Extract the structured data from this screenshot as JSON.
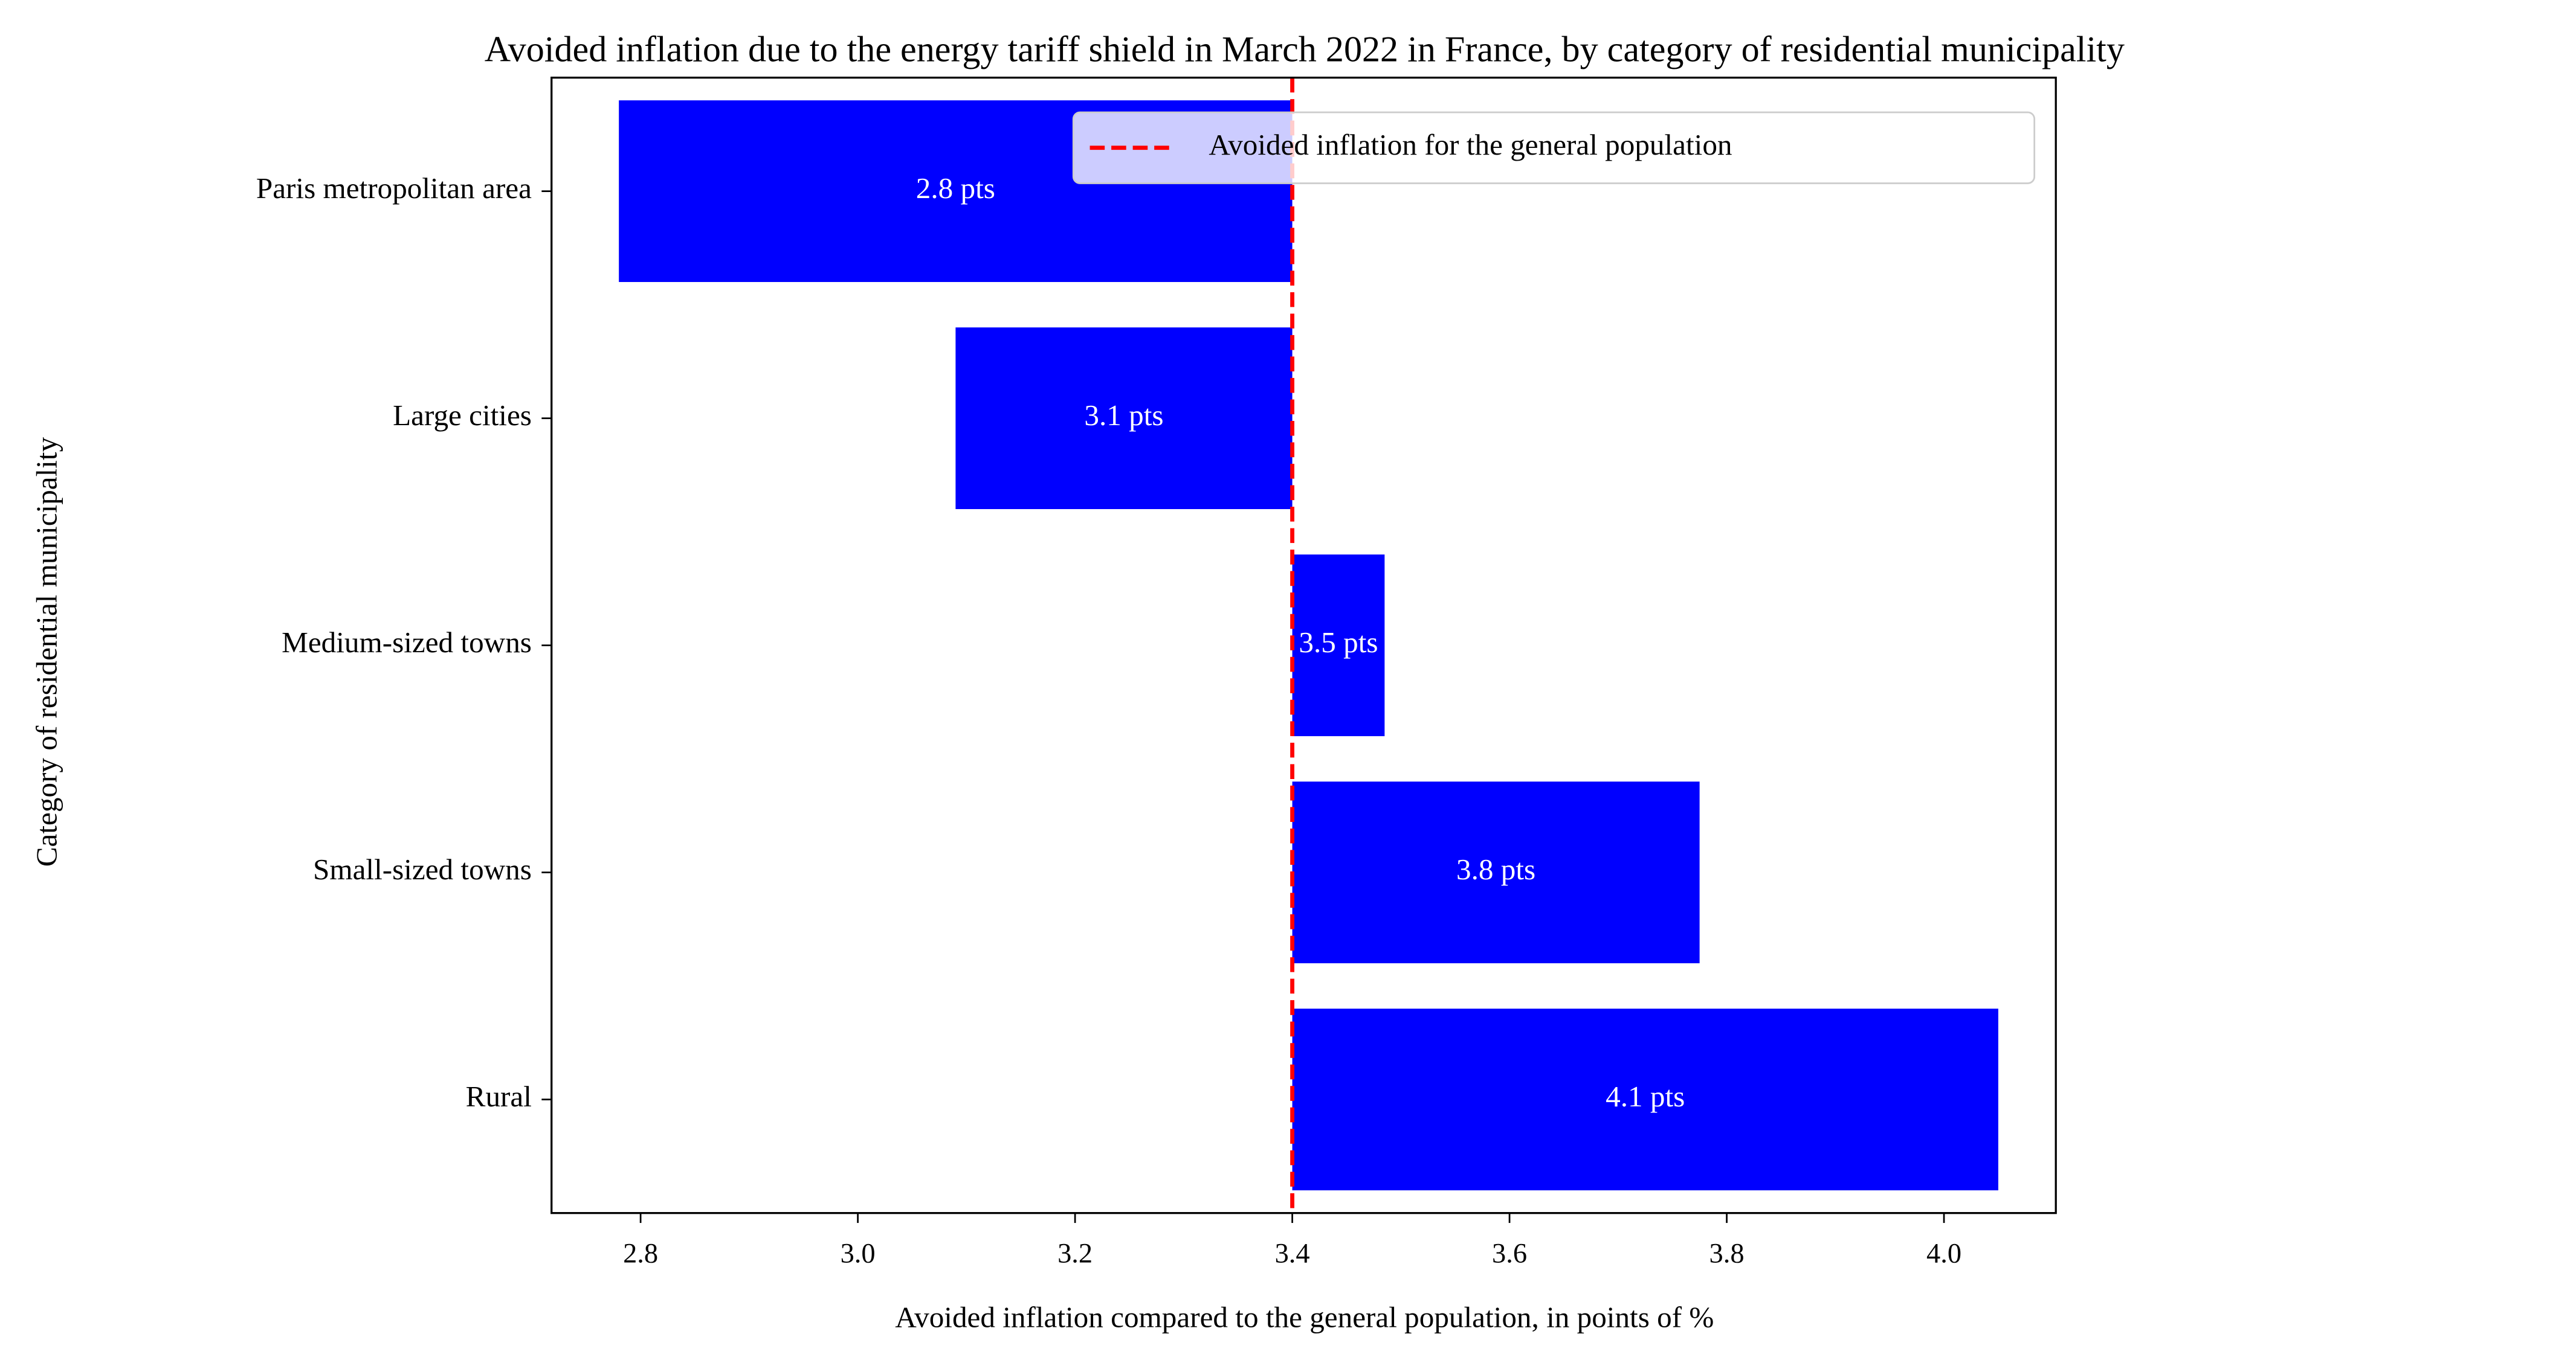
{
  "chart_data": {
    "type": "bar",
    "orientation": "horizontal",
    "title": "Avoided inflation due to the energy tariff shield in March 2022 in France, by category of residential municipality",
    "xlabel": "Avoided inflation compared to the general population, in points of %",
    "ylabel": "Category of residential municipality",
    "categories": [
      "Paris metropolitan area",
      "Large cities",
      "Medium-sized towns",
      "Small-sized towns",
      "Rural"
    ],
    "values": [
      2.78,
      3.09,
      3.485,
      3.775,
      4.05
    ],
    "value_labels": [
      "2.8 pts",
      "3.1 pts",
      "3.5 pts",
      "3.8 pts",
      "4.1 pts"
    ],
    "color": "#0000ff",
    "reference_line": {
      "value": 3.4,
      "label": "Avoided inflation for the general population",
      "color": "#ff0000"
    },
    "xlim": [
      2.718,
      4.103
    ],
    "xticks": [
      2.8,
      {
        "value": 3,
        "label": "3.0"
      },
      3.2,
      3.4,
      3.6,
      3.8,
      {
        "value": 4,
        "label": "4.0"
      }
    ],
    "legend_position": "upper right",
    "grid": false
  }
}
